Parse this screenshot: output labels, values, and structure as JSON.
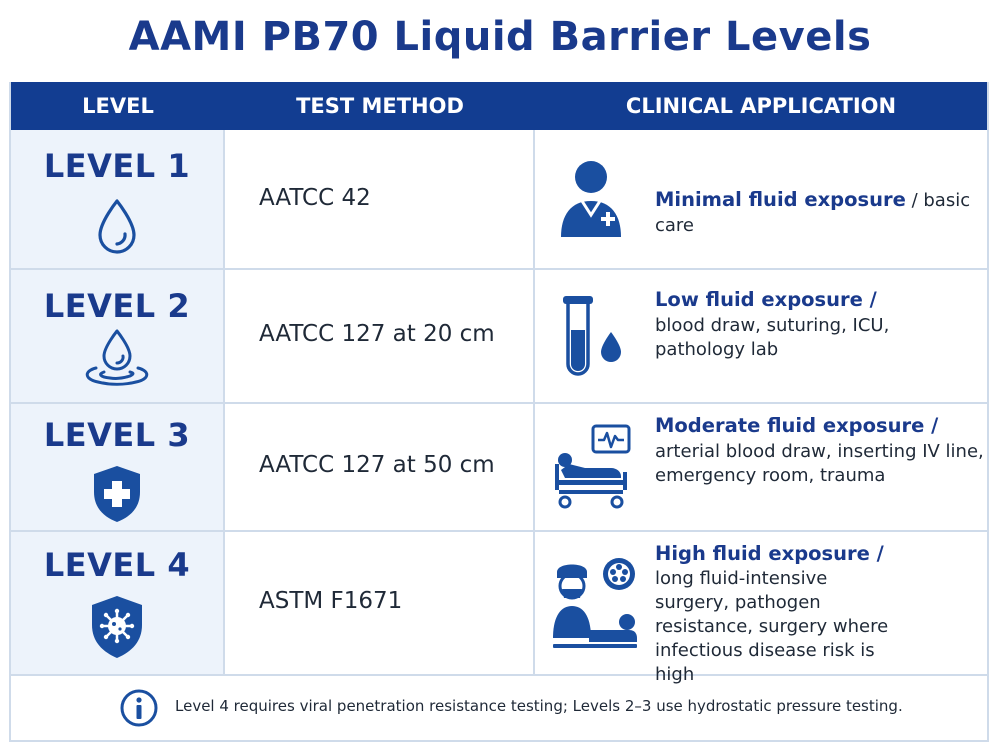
{
  "title": "AAMI PB70 Liquid Barrier Levels",
  "headers": [
    "LEVEL",
    "TEST METHOD",
    "CLINICAL APPLICATION"
  ],
  "rows": [
    {
      "level": "LEVEL 1",
      "level_icon": "water-drop-icon",
      "method": "AATCC 42",
      "app_icon": "healthcare-worker-icon",
      "app_bold": "Minimal fluid exposure",
      "app_rest": " / basic care"
    },
    {
      "level": "LEVEL 2",
      "level_icon": "drop-splash-icon",
      "method": "AATCC 127 at 20 cm",
      "app_icon": "test-tube-blood-icon",
      "app_bold": "Low fluid exposure",
      "app_slash": " /",
      "app_rest": "blood draw, suturing, ICU, pathology lab"
    },
    {
      "level": "LEVEL 3",
      "level_icon": "shield-cross-icon",
      "method": "AATCC 127 at 50 cm",
      "app_icon": "patient-bed-monitor-icon",
      "app_bold": "Moderate fluid exposure",
      "app_slash": " /",
      "app_rest": "arterial blood draw, inserting IV line, emergency room, trauma"
    },
    {
      "level": "LEVEL 4",
      "level_icon": "shield-virus-icon",
      "method": "ASTM F1671",
      "app_icon": "surgeon-operating-icon",
      "app_bold": "High fluid exposure",
      "app_slash": " /",
      "app_rest": "long fluid-intensive surgery, pathogen resistance, surgery where infectious disease risk is high"
    }
  ],
  "note": {
    "icon": "info-icon",
    "text": "Level 4 requires viral penetration resistance testing; Levels 2–3 use hydrostatic pressure testing."
  },
  "colors": {
    "brand_blue": "#1a3a8c",
    "header_bg": "#123d91",
    "level_column_bg": "#edf3fb",
    "grid_line": "#cfdbea"
  }
}
